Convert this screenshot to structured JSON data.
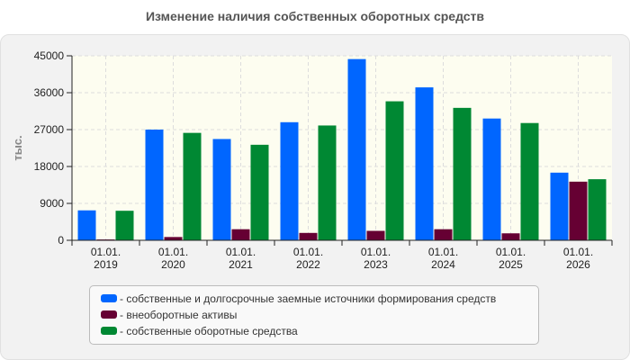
{
  "chart_data": {
    "type": "bar",
    "title": "Изменение наличия собственных оборотных средств",
    "ylabel": "тыс.",
    "xlabel": "",
    "ylim": [
      0,
      45000
    ],
    "yticks": [
      0,
      9000,
      18000,
      27000,
      36000,
      45000
    ],
    "grid": true,
    "legend_position": "bottom",
    "categories": [
      [
        "01.01.",
        "2019"
      ],
      [
        "01.01.",
        "2020"
      ],
      [
        "01.01.",
        "2021"
      ],
      [
        "01.01.",
        "2022"
      ],
      [
        "01.01.",
        "2023"
      ],
      [
        "01.01.",
        "2024"
      ],
      [
        "01.01.",
        "2025"
      ],
      [
        "01.01.",
        "2026"
      ]
    ],
    "series": [
      {
        "name": "собственные и долгосрочные заемные источники формирования средств",
        "color": "#0066ff",
        "values": [
          7300,
          27000,
          24700,
          28800,
          44200,
          37300,
          29700,
          16500
        ]
      },
      {
        "name": "внеоборотные активы",
        "color": "#660033",
        "values": [
          200,
          800,
          2700,
          1800,
          2300,
          2700,
          1700,
          14300
        ]
      },
      {
        "name": "собственные оборотные средства",
        "color": "#008833",
        "values": [
          7200,
          26200,
          23300,
          28000,
          33900,
          32300,
          28600,
          14900
        ]
      }
    ]
  },
  "legend": {
    "items": [
      "- собственные и долгосрочные заемные источники формирования средств",
      "- внеоборотные активы",
      "- собственные оборотные средства"
    ]
  }
}
